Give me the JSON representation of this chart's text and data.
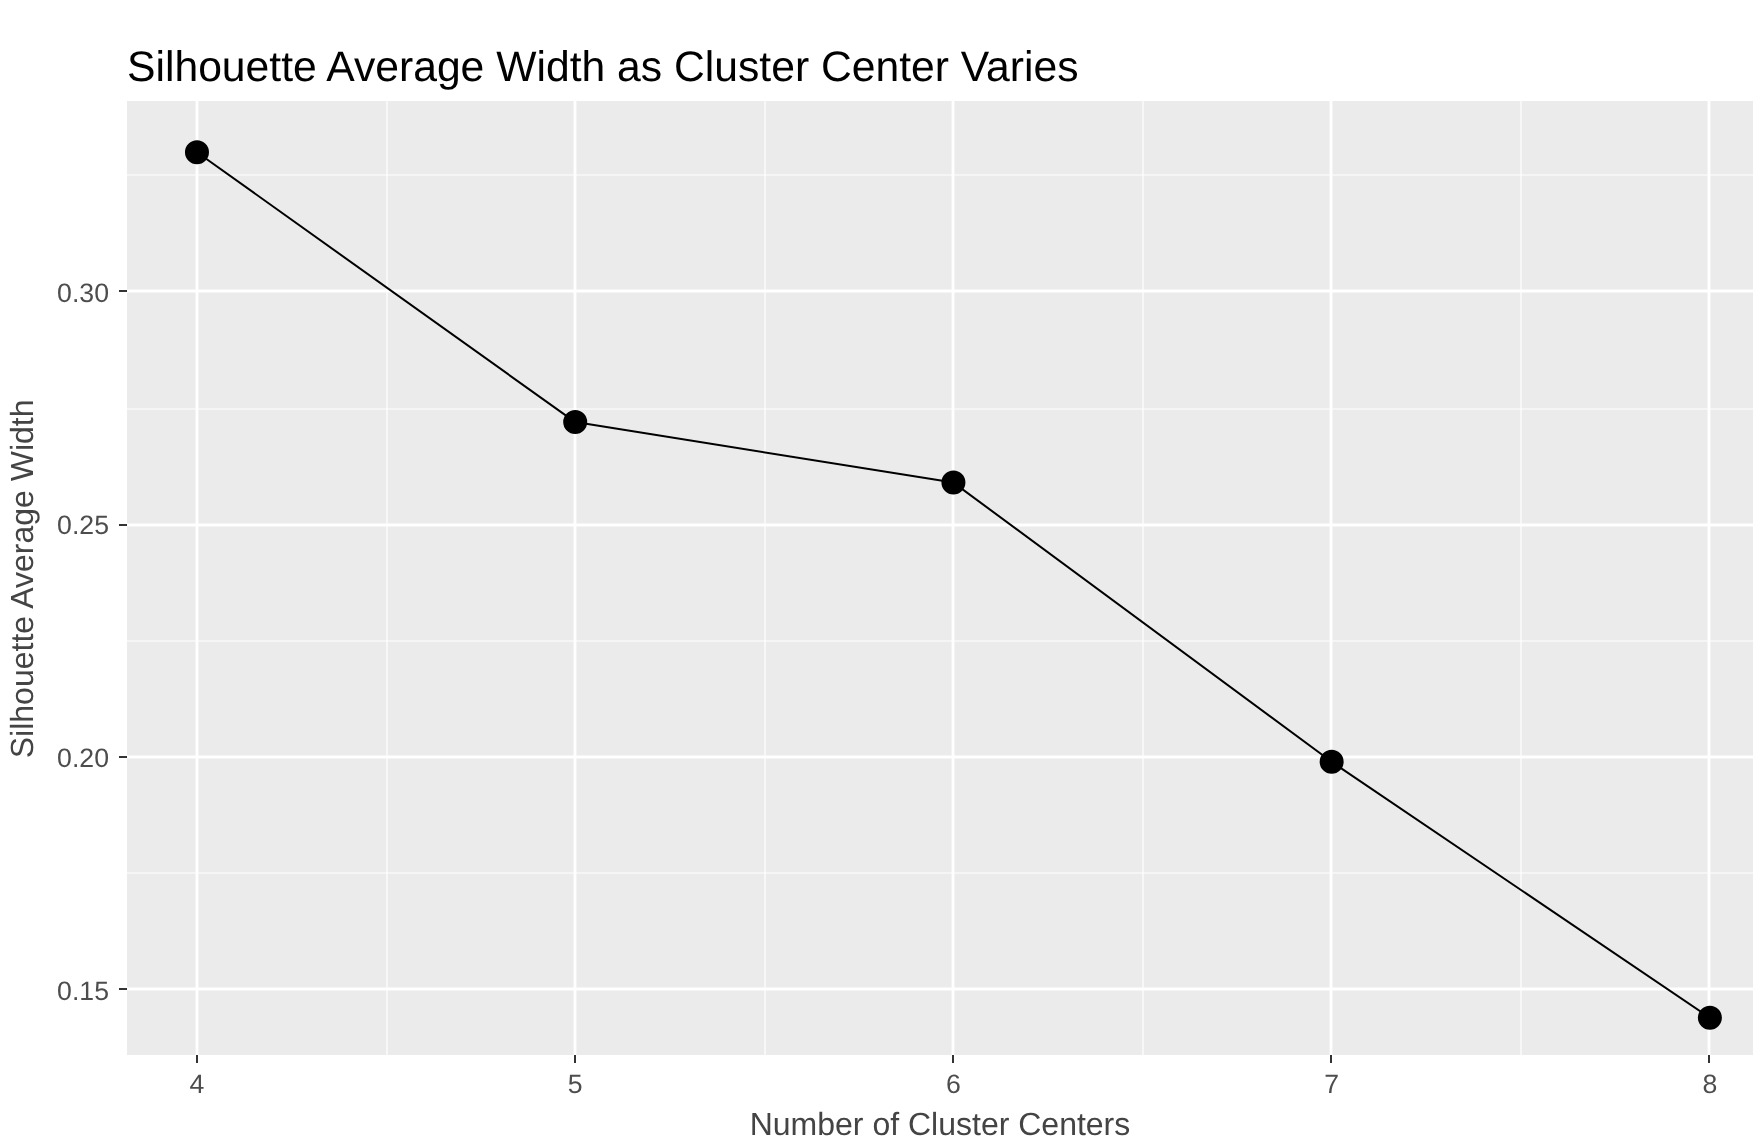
{
  "chart_data": {
    "type": "line",
    "title": "Silhouette Average Width as Cluster Center Varies",
    "xlabel": "Number of Cluster Centers",
    "ylabel": "Silhouette Average Width",
    "x": [
      4,
      5,
      6,
      7,
      8
    ],
    "series": [
      {
        "color": "#000000",
        "values": [
          0.33,
          0.272,
          0.259,
          0.199,
          0.144
        ]
      }
    ],
    "xlim": [
      3.815,
      8.114
    ],
    "ylim": [
      0.136,
      0.341
    ],
    "xticks": [
      4,
      5,
      6,
      7,
      8
    ],
    "yticks": [
      {
        "value": 0.15,
        "label": "0.15"
      },
      {
        "value": 0.2,
        "label": "0.20"
      },
      {
        "value": 0.25,
        "label": "0.25"
      },
      {
        "value": 0.3,
        "label": "0.30"
      }
    ],
    "grid": true,
    "marker": "circle",
    "line_style": "solid"
  }
}
